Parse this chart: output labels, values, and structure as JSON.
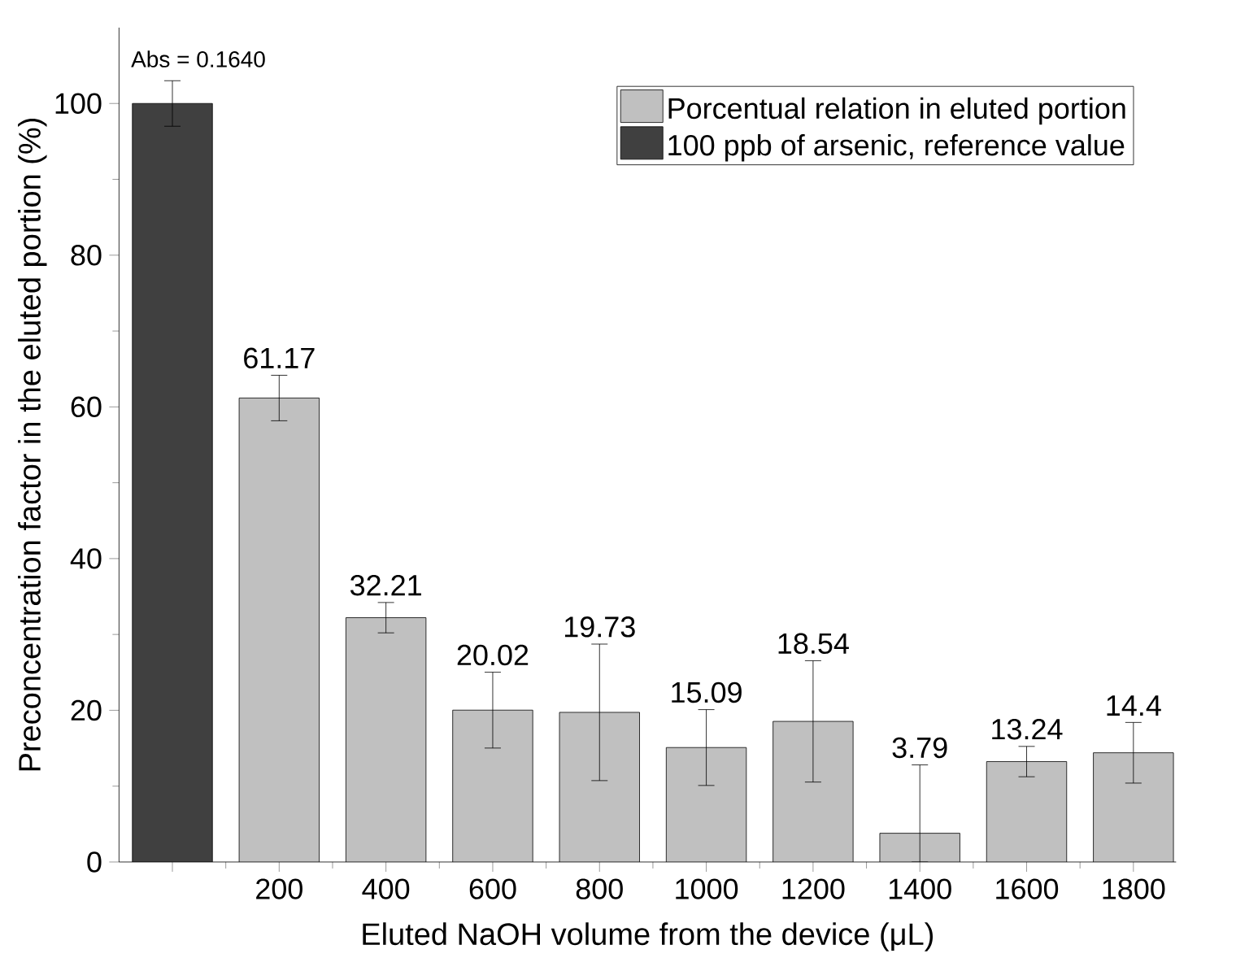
{
  "chart_data": {
    "type": "bar",
    "xlabel": "Eluted NaOH volume from the device (μL)",
    "ylabel": "Preconcentration factor in the eluted portion (%)",
    "categories": [
      null,
      "200",
      "400",
      "600",
      "800",
      "1000",
      "1200",
      "1400",
      "1600",
      "1800"
    ],
    "series": [
      {
        "name": "Porcentual relation in eluted portion",
        "color": "#c0c0c0",
        "values": [
          null,
          61.17,
          32.21,
          20.02,
          19.73,
          15.09,
          18.54,
          3.79,
          13.24,
          14.4
        ],
        "errors": [
          null,
          3,
          2,
          5,
          9,
          5,
          8,
          [
            0,
            12.8
          ],
          2,
          4
        ],
        "value_labels": [
          null,
          "61.17",
          "32.21",
          "20.02",
          "19.73",
          "15.09",
          "18.54",
          "3.79",
          "13.24",
          "14.4"
        ]
      },
      {
        "name": "100 ppb of arsenic, reference value",
        "color": "#404040",
        "values": [
          100,
          null,
          null,
          null,
          null,
          null,
          null,
          null,
          null,
          null
        ],
        "errors": [
          3,
          null,
          null,
          null,
          null,
          null,
          null,
          null,
          null,
          null
        ]
      }
    ],
    "annotations": [
      "Abs = 0.1640"
    ],
    "ylim": [
      0,
      110
    ],
    "yticks": [
      0,
      20,
      40,
      60,
      80,
      100
    ],
    "legend": "top right",
    "grid": false
  }
}
